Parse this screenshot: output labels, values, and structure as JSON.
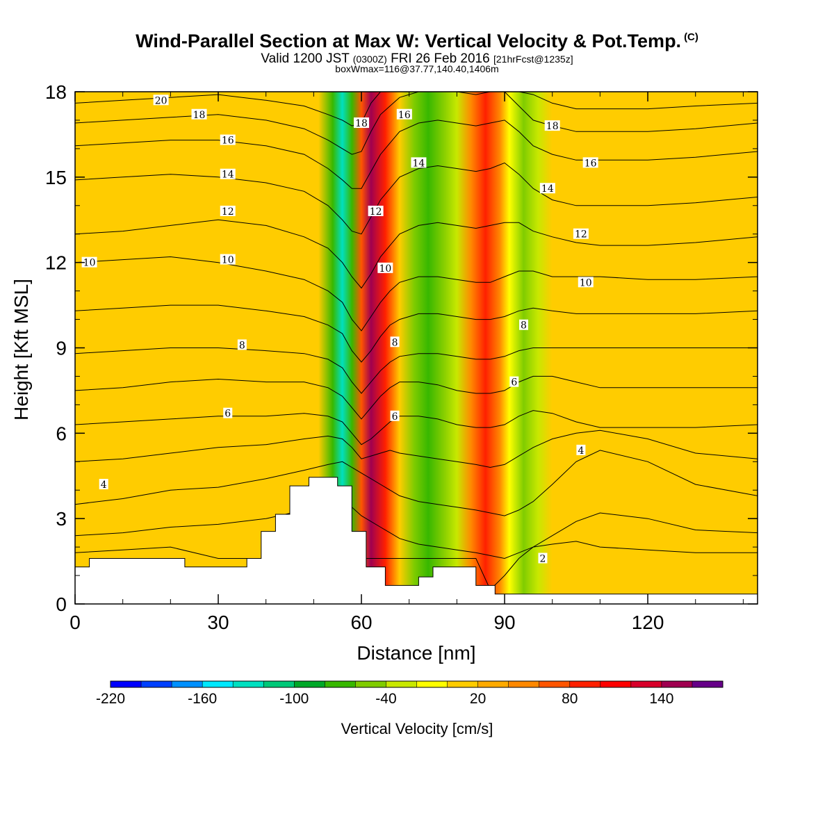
{
  "header": {
    "title": "Wind-Parallel Section at Max W: Vertical Velocity & Pot.Temp.",
    "copyright": "(C)",
    "valid_main": "Valid 1200 JST",
    "valid_utc": "(0300Z)",
    "valid_date": "FRI 26 Feb 2016",
    "forecast": "[21hrFcst@1235z]",
    "box_info": "boxWmax=116@37.77,140.40,1406m"
  },
  "chart_data": {
    "type": "contour",
    "title": "Wind-Parallel Section at Max W: Vertical Velocity & Pot.Temp.",
    "xlabel": "Distance [nm]",
    "ylabel": "Height [Kft MSL]",
    "xlim": [
      0,
      143
    ],
    "ylim": [
      0,
      18
    ],
    "x_ticks": [
      0,
      30,
      60,
      90,
      120
    ],
    "y_ticks": [
      0,
      3,
      6,
      9,
      12,
      15,
      18
    ],
    "colorbar": {
      "label": "Vertical Velocity [cm/s]",
      "tick_labels": [
        "-220",
        "-160",
        "-100",
        "-40",
        "20",
        "80",
        "140"
      ],
      "colors": [
        "#0000ff",
        "#0040ff",
        "#0090ff",
        "#00e8ff",
        "#00e0c0",
        "#00c878",
        "#00a828",
        "#38b800",
        "#80cc00",
        "#c8e800",
        "#ffff00",
        "#ffcc00",
        "#ffaa00",
        "#ff8800",
        "#ff5500",
        "#ff2000",
        "#ff0000",
        "#d8002a",
        "#a00050",
        "#660088"
      ]
    },
    "velocity_columns": [
      {
        "x": 0,
        "w": 5
      },
      {
        "x": 2,
        "w": 12
      },
      {
        "x": 5,
        "w": 10
      },
      {
        "x": 8,
        "w": 12
      },
      {
        "x": 10,
        "w": 6
      },
      {
        "x": 15,
        "w": 11
      },
      {
        "x": 20,
        "w": 10
      },
      {
        "x": 26,
        "w": 11
      },
      {
        "x": 31,
        "w": 8
      },
      {
        "x": 34,
        "w": 10
      },
      {
        "x": 40,
        "w": 11
      },
      {
        "x": 45,
        "w": 12
      },
      {
        "x": 49,
        "w": 10
      },
      {
        "x": 51,
        "w": 5
      },
      {
        "x": 54,
        "w": -70
      },
      {
        "x": 56,
        "w": -130
      },
      {
        "x": 58,
        "w": -80
      },
      {
        "x": 60,
        "w": 60
      },
      {
        "x": 62,
        "w": 140
      },
      {
        "x": 65,
        "w": 80
      },
      {
        "x": 68,
        "w": 0
      },
      {
        "x": 71,
        "w": -50
      },
      {
        "x": 74,
        "w": -80
      },
      {
        "x": 77,
        "w": -50
      },
      {
        "x": 80,
        "w": -30
      },
      {
        "x": 83,
        "w": 40
      },
      {
        "x": 86,
        "w": 90
      },
      {
        "x": 89,
        "w": 40
      },
      {
        "x": 91,
        "w": -20
      },
      {
        "x": 94,
        "w": -60
      },
      {
        "x": 97,
        "w": -40
      },
      {
        "x": 100,
        "w": 0
      },
      {
        "x": 104,
        "w": 15
      },
      {
        "x": 108,
        "w": 12
      },
      {
        "x": 113,
        "w": 10
      },
      {
        "x": 118,
        "w": 18
      },
      {
        "x": 123,
        "w": 8
      },
      {
        "x": 128,
        "w": 12
      },
      {
        "x": 133,
        "w": 10
      },
      {
        "x": 138,
        "w": 6
      },
      {
        "x": 143,
        "w": 10
      }
    ],
    "terrain": [
      {
        "x": 0,
        "h": 1.3
      },
      {
        "x": 3,
        "h": 1.3
      },
      {
        "x": 3,
        "h": 1.6
      },
      {
        "x": 23,
        "h": 1.6
      },
      {
        "x": 23,
        "h": 1.3
      },
      {
        "x": 36,
        "h": 1.3
      },
      {
        "x": 36,
        "h": 1.6
      },
      {
        "x": 39,
        "h": 1.6
      },
      {
        "x": 39,
        "h": 2.55
      },
      {
        "x": 42,
        "h": 2.55
      },
      {
        "x": 42,
        "h": 3.15
      },
      {
        "x": 45,
        "h": 3.15
      },
      {
        "x": 45,
        "h": 4.15
      },
      {
        "x": 49,
        "h": 4.15
      },
      {
        "x": 49,
        "h": 4.45
      },
      {
        "x": 55,
        "h": 4.45
      },
      {
        "x": 55,
        "h": 4.15
      },
      {
        "x": 58,
        "h": 4.15
      },
      {
        "x": 58,
        "h": 2.55
      },
      {
        "x": 61,
        "h": 2.55
      },
      {
        "x": 61,
        "h": 1.3
      },
      {
        "x": 65,
        "h": 1.3
      },
      {
        "x": 65,
        "h": 0.65
      },
      {
        "x": 72,
        "h": 0.65
      },
      {
        "x": 72,
        "h": 0.95
      },
      {
        "x": 75,
        "h": 0.95
      },
      {
        "x": 75,
        "h": 1.3
      },
      {
        "x": 84,
        "h": 1.3
      },
      {
        "x": 84,
        "h": 0.65
      },
      {
        "x": 88,
        "h": 0.65
      },
      {
        "x": 88,
        "h": 0.35
      },
      {
        "x": 143,
        "h": 0.35
      }
    ],
    "theta_profile_x": [
      0,
      10,
      20,
      30,
      40,
      48,
      53,
      56,
      58,
      60,
      62,
      64,
      66,
      68,
      72,
      76,
      80,
      84,
      87,
      90,
      93,
      96,
      100,
      105,
      110,
      120,
      130,
      143
    ],
    "theta_contours": [
      {
        "label": "2",
        "y": [
          1.8,
          1.9,
          2.0,
          1.6,
          1.6,
          1.6,
          1.6,
          1.6,
          1.6,
          1.6,
          1.6,
          1.6,
          1.6,
          1.6,
          1.6,
          1.6,
          1.6,
          1.6,
          0.5,
          1.0,
          1.6,
          2.0,
          2.1,
          2.2,
          2.0,
          1.9,
          1.8,
          1.8
        ]
      },
      {
        "label": "4",
        "y": [
          3.5,
          3.7,
          4.0,
          4.1,
          4.4,
          4.7,
          4.9,
          5.0,
          4.8,
          4.6,
          4.4,
          4.2,
          4.0,
          3.8,
          3.6,
          3.5,
          3.4,
          3.3,
          3.2,
          3.1,
          3.3,
          3.6,
          4.2,
          5.0,
          5.4,
          5.0,
          4.2,
          3.8
        ]
      },
      {
        "label": "6",
        "y": [
          6.3,
          6.4,
          6.5,
          6.6,
          6.6,
          6.7,
          6.6,
          6.4,
          6.0,
          5.6,
          5.8,
          6.1,
          6.4,
          6.6,
          6.6,
          6.5,
          6.3,
          6.2,
          6.2,
          6.3,
          6.6,
          6.8,
          6.7,
          6.4,
          6.2,
          6.2,
          6.2,
          6.3
        ]
      },
      {
        "label": "8",
        "y": [
          8.8,
          8.9,
          9.0,
          9.0,
          8.9,
          8.8,
          8.6,
          8.3,
          7.8,
          7.4,
          7.8,
          8.2,
          8.5,
          8.7,
          8.8,
          8.8,
          8.7,
          8.6,
          8.6,
          8.7,
          8.9,
          9.0,
          9.0,
          9.0,
          9.0,
          9.0,
          9.0,
          9.0
        ]
      },
      {
        "label": "10",
        "y": [
          12.0,
          12.1,
          12.2,
          12.0,
          11.7,
          11.4,
          11.0,
          10.6,
          10.0,
          9.6,
          10.1,
          10.6,
          11.0,
          11.3,
          11.5,
          11.5,
          11.4,
          11.3,
          11.3,
          11.5,
          11.7,
          11.7,
          11.5,
          11.5,
          11.5,
          11.4,
          11.4,
          11.5
        ]
      },
      {
        "label": "12",
        "y": [
          13.0,
          13.1,
          13.3,
          13.5,
          13.3,
          12.9,
          12.5,
          12.0,
          11.5,
          11.1,
          11.6,
          12.2,
          12.6,
          13.0,
          13.3,
          13.4,
          13.3,
          13.2,
          13.3,
          13.4,
          13.4,
          13.1,
          12.9,
          12.7,
          12.6,
          12.6,
          12.7,
          12.9
        ]
      },
      {
        "label": "14",
        "y": [
          14.9,
          15.0,
          15.1,
          15.0,
          14.8,
          14.5,
          14.0,
          13.5,
          13.1,
          13.0,
          13.6,
          14.2,
          14.6,
          15.0,
          15.3,
          15.4,
          15.3,
          15.2,
          15.3,
          15.5,
          15.1,
          14.6,
          14.2,
          14.0,
          14.0,
          14.0,
          14.1,
          14.3
        ]
      },
      {
        "label": "16",
        "y": [
          16.1,
          16.2,
          16.3,
          16.3,
          16.1,
          15.8,
          15.3,
          14.9,
          14.6,
          14.6,
          15.2,
          15.8,
          16.2,
          16.6,
          16.9,
          17.0,
          16.9,
          16.8,
          16.9,
          17.0,
          16.6,
          16.1,
          15.8,
          15.6,
          15.6,
          15.6,
          15.7,
          15.9
        ]
      },
      {
        "label": "18",
        "y": [
          16.9,
          17.0,
          17.1,
          17.2,
          17.0,
          16.7,
          16.3,
          16.0,
          15.8,
          15.9,
          16.6,
          17.2,
          17.5,
          17.8,
          18.0,
          18.0,
          18.0,
          17.9,
          18.0,
          18.0,
          17.5,
          17.0,
          16.8,
          16.6,
          16.6,
          16.6,
          16.7,
          16.9
        ]
      },
      {
        "label": "20",
        "y": [
          17.6,
          17.7,
          17.8,
          17.9,
          17.7,
          17.5,
          17.2,
          17.0,
          16.8,
          16.9,
          17.6,
          18.0,
          18.0,
          18.0,
          18.0,
          18.0,
          18.0,
          18.0,
          18.0,
          18.0,
          18.0,
          17.9,
          17.6,
          17.4,
          17.4,
          17.4,
          17.5,
          17.6
        ]
      }
    ],
    "extra_contours": [
      {
        "label": "",
        "y": [
          2.4,
          2.5,
          2.7,
          2.8,
          3.0,
          3.3,
          3.5,
          3.6,
          3.4,
          3.1,
          2.9,
          2.7,
          2.5,
          2.3,
          2.1,
          2.0,
          1.9,
          1.8,
          1.7,
          1.6,
          1.8,
          2.0,
          2.4,
          2.9,
          3.2,
          3.0,
          2.6,
          2.5
        ]
      },
      {
        "label": "",
        "y": [
          5.0,
          5.1,
          5.3,
          5.5,
          5.6,
          5.8,
          5.9,
          5.8,
          5.5,
          5.1,
          5.2,
          5.3,
          5.4,
          5.3,
          5.2,
          5.1,
          5.0,
          4.9,
          4.8,
          4.9,
          5.2,
          5.5,
          5.8,
          6.0,
          6.1,
          5.8,
          5.3,
          5.1
        ]
      },
      {
        "label": "",
        "y": [
          7.5,
          7.6,
          7.8,
          7.9,
          7.8,
          7.8,
          7.6,
          7.3,
          6.9,
          6.5,
          6.9,
          7.3,
          7.6,
          7.8,
          7.8,
          7.7,
          7.5,
          7.4,
          7.4,
          7.5,
          7.8,
          8.0,
          8.0,
          7.8,
          7.6,
          7.6,
          7.6,
          7.6
        ]
      },
      {
        "label": "",
        "y": [
          10.3,
          10.4,
          10.5,
          10.5,
          10.3,
          10.1,
          9.8,
          9.5,
          8.9,
          8.5,
          8.9,
          9.4,
          9.8,
          10.0,
          10.2,
          10.2,
          10.1,
          10.0,
          10.0,
          10.1,
          10.3,
          10.4,
          10.3,
          10.2,
          10.2,
          10.2,
          10.2,
          10.3
        ]
      }
    ],
    "theta_label_positions": [
      {
        "label": "20",
        "x": 18,
        "y": 17.7
      },
      {
        "label": "18",
        "x": 26,
        "y": 17.2
      },
      {
        "label": "16",
        "x": 32,
        "y": 16.3
      },
      {
        "label": "14",
        "x": 32,
        "y": 15.1
      },
      {
        "label": "12",
        "x": 32,
        "y": 13.8
      },
      {
        "label": "10",
        "x": 32,
        "y": 12.1
      },
      {
        "label": "8",
        "x": 35,
        "y": 9.1
      },
      {
        "label": "6",
        "x": 32,
        "y": 6.7
      },
      {
        "label": "4",
        "x": 6,
        "y": 4.2
      },
      {
        "label": "10",
        "x": 3,
        "y": 12.0
      },
      {
        "label": "18",
        "x": 60,
        "y": 16.9
      },
      {
        "label": "16",
        "x": 69,
        "y": 17.2
      },
      {
        "label": "14",
        "x": 72,
        "y": 15.5
      },
      {
        "label": "12",
        "x": 63,
        "y": 13.8
      },
      {
        "label": "10",
        "x": 65,
        "y": 11.8
      },
      {
        "label": "8",
        "x": 67,
        "y": 9.2
      },
      {
        "label": "6",
        "x": 67,
        "y": 6.6
      },
      {
        "label": "18",
        "x": 100,
        "y": 16.8
      },
      {
        "label": "16",
        "x": 108,
        "y": 15.5
      },
      {
        "label": "14",
        "x": 99,
        "y": 14.6
      },
      {
        "label": "12",
        "x": 106,
        "y": 13.0
      },
      {
        "label": "10",
        "x": 107,
        "y": 11.3
      },
      {
        "label": "8",
        "x": 94,
        "y": 9.8
      },
      {
        "label": "6",
        "x": 92,
        "y": 7.8
      },
      {
        "label": "4",
        "x": 106,
        "y": 5.4
      },
      {
        "label": "2",
        "x": 98,
        "y": 1.6
      }
    ]
  }
}
